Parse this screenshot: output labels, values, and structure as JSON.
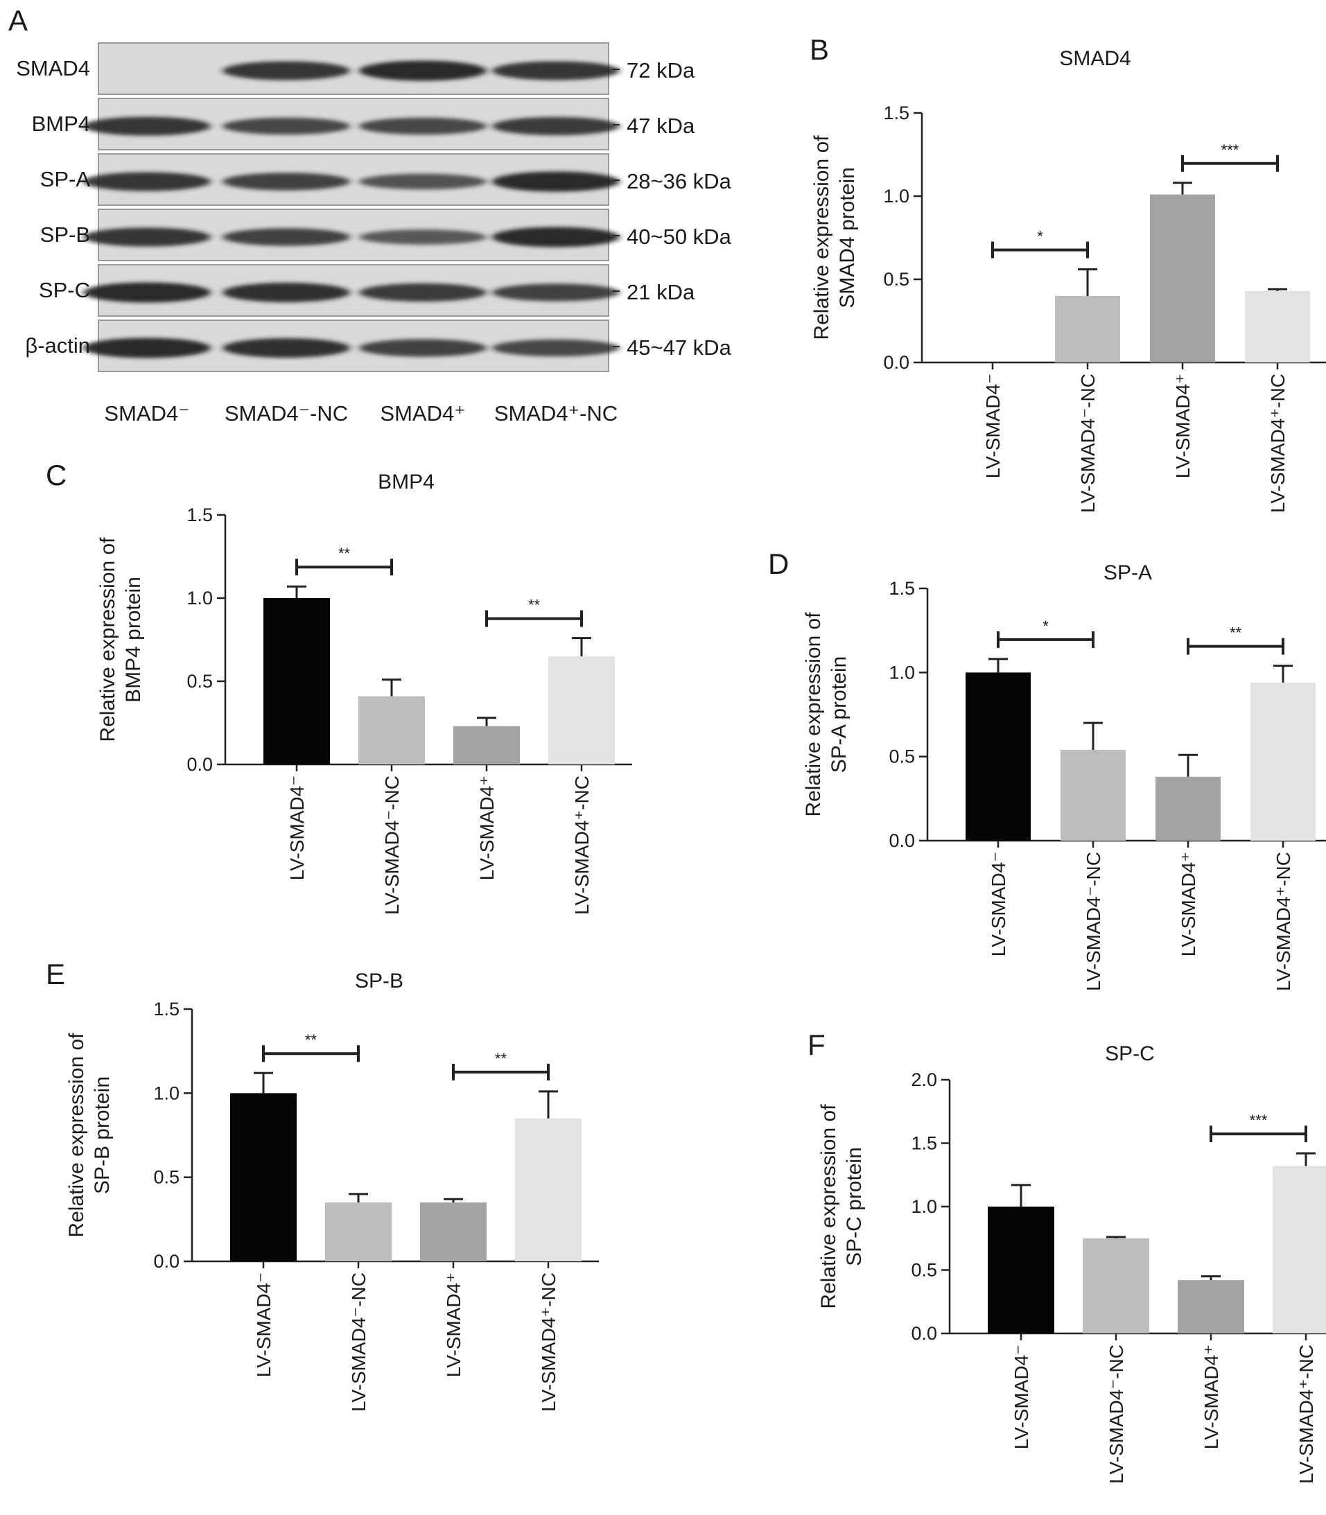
{
  "figure": {
    "panel_A": {
      "letter": "A",
      "blot_rows": [
        {
          "protein": "SMAD4",
          "size": "72 kDa"
        },
        {
          "protein": "BMP4",
          "size": "47 kDa"
        },
        {
          "protein": "SP-A",
          "size": "28~36 kDa"
        },
        {
          "protein": "SP-B",
          "size": "40~50 kDa"
        },
        {
          "protein": "SP-C",
          "size": "21 kDa"
        },
        {
          "protein": "β-actin",
          "size": "45~47 kDa"
        }
      ],
      "lanes": [
        "SMAD4⁻",
        "SMAD4⁻-NC",
        "SMAD4⁺",
        "SMAD4⁺-NC"
      ],
      "band_intensity": [
        [
          0.0,
          0.85,
          0.95,
          0.85
        ],
        [
          0.85,
          0.7,
          0.7,
          0.8
        ],
        [
          0.85,
          0.75,
          0.6,
          0.95
        ],
        [
          0.85,
          0.75,
          0.55,
          0.95
        ],
        [
          0.95,
          0.9,
          0.8,
          0.75
        ],
        [
          0.95,
          0.9,
          0.75,
          0.7
        ]
      ]
    }
  },
  "colors": {
    "bar_colors": [
      "#050505",
      "#bdbdbd",
      "#a3a3a3",
      "#e3e3e3"
    ],
    "axis": "#222222",
    "blot_background": "#d9d9d9",
    "band": "#1e1e1e"
  },
  "chart_data": [
    {
      "panel": "B",
      "type": "bar",
      "title": "SMAD4",
      "ylabel": [
        "Relative expression of",
        "SMAD4 protein"
      ],
      "categories": [
        "LV-SMAD4⁻",
        "LV-SMAD4⁻-NC",
        "LV-SMAD4⁺",
        "LV-SMAD4⁺-NC"
      ],
      "values": [
        0.0,
        0.4,
        1.01,
        0.43
      ],
      "errors": [
        0.0,
        0.16,
        0.07,
        0.01
      ],
      "ylim": [
        0,
        1.5
      ],
      "yticks": [
        "0.0",
        "0.5",
        "1.0",
        "1.5"
      ],
      "significance": [
        {
          "from": 0,
          "to": 1,
          "label": "*"
        },
        {
          "from": 2,
          "to": 3,
          "label": "***"
        }
      ]
    },
    {
      "panel": "C",
      "type": "bar",
      "title": "BMP4",
      "ylabel": [
        "Relative expression of",
        "BMP4 protein"
      ],
      "categories": [
        "LV-SMAD4⁻",
        "LV-SMAD4⁻-NC",
        "LV-SMAD4⁺",
        "LV-SMAD4⁺-NC"
      ],
      "values": [
        1.0,
        0.41,
        0.23,
        0.65
      ],
      "errors": [
        0.07,
        0.1,
        0.05,
        0.11
      ],
      "ylim": [
        0,
        1.5
      ],
      "yticks": [
        "0.0",
        "0.5",
        "1.0",
        "1.5"
      ],
      "significance": [
        {
          "from": 0,
          "to": 1,
          "label": "**"
        },
        {
          "from": 2,
          "to": 3,
          "label": "**"
        }
      ]
    },
    {
      "panel": "D",
      "type": "bar",
      "title": "SP-A",
      "ylabel": [
        "Relative expression of",
        "SP-A protein"
      ],
      "categories": [
        "LV-SMAD4⁻",
        "LV-SMAD4⁻-NC",
        "LV-SMAD4⁺",
        "LV-SMAD4⁺-NC"
      ],
      "values": [
        1.0,
        0.54,
        0.38,
        0.94
      ],
      "errors": [
        0.08,
        0.16,
        0.13,
        0.1
      ],
      "ylim": [
        0,
        1.5
      ],
      "yticks": [
        "0.0",
        "0.5",
        "1.0",
        "1.5"
      ],
      "significance": [
        {
          "from": 0,
          "to": 1,
          "label": "*"
        },
        {
          "from": 2,
          "to": 3,
          "label": "**"
        }
      ]
    },
    {
      "panel": "E",
      "type": "bar",
      "title": "SP-B",
      "ylabel": [
        "Relative expression of",
        "SP-B protein"
      ],
      "categories": [
        "LV-SMAD4⁻",
        "LV-SMAD4⁻-NC",
        "LV-SMAD4⁺",
        "LV-SMAD4⁺-NC"
      ],
      "values": [
        1.0,
        0.35,
        0.35,
        0.85
      ],
      "errors": [
        0.12,
        0.05,
        0.02,
        0.16
      ],
      "ylim": [
        0,
        1.5
      ],
      "yticks": [
        "0.0",
        "0.5",
        "1.0",
        "1.5"
      ],
      "significance": [
        {
          "from": 0,
          "to": 1,
          "label": "**"
        },
        {
          "from": 2,
          "to": 3,
          "label": "**"
        }
      ]
    },
    {
      "panel": "F",
      "type": "bar",
      "title": "SP-C",
      "ylabel": [
        "Relative expression of",
        "SP-C protein"
      ],
      "categories": [
        "LV-SMAD4⁻",
        "LV-SMAD4⁻-NC",
        "LV-SMAD4⁺",
        "LV-SMAD4⁺-NC"
      ],
      "values": [
        1.0,
        0.75,
        0.42,
        1.32
      ],
      "errors": [
        0.17,
        0.01,
        0.03,
        0.1
      ],
      "ylim": [
        0,
        2.0
      ],
      "yticks": [
        "0.0",
        "0.5",
        "1.0",
        "1.5",
        "2.0"
      ],
      "significance": [
        {
          "from": 2,
          "to": 3,
          "label": "***"
        }
      ]
    }
  ]
}
